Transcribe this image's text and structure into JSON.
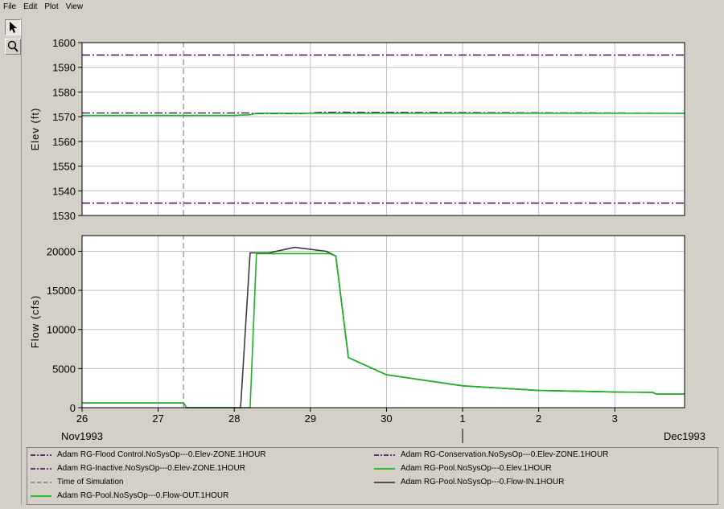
{
  "menu": [
    "File",
    "Edit",
    "Plot",
    "View"
  ],
  "tools": [
    {
      "name": "pointer-tool",
      "icon": "arrow-pointer-icon",
      "active": true
    },
    {
      "name": "zoom-tool",
      "icon": "magnifier-icon",
      "active": false
    }
  ],
  "colors": {
    "purple": "#5a1a6e",
    "green": "#16b51e",
    "black": "#3c3c3c",
    "gray": "#707070",
    "grid": "#c0c0c0",
    "plot_bg": "#ffffff"
  },
  "x_axis": {
    "ticks": [
      {
        "day": 26,
        "label": "26"
      },
      {
        "day": 27,
        "label": "27"
      },
      {
        "day": 28,
        "label": "28"
      },
      {
        "day": 29,
        "label": "29"
      },
      {
        "day": 30,
        "label": "30"
      },
      {
        "day": 31,
        "label": "1"
      },
      {
        "day": 32,
        "label": "2"
      },
      {
        "day": 33,
        "label": "3"
      }
    ],
    "month_left": "Nov1993",
    "month_right": "Dec1993"
  },
  "chart_data": [
    {
      "type": "line",
      "ylabel": "Elev  (ft)",
      "xlim": [
        "26Nov1993",
        "03Dec1993 22:00"
      ],
      "ylim": [
        1530,
        1600
      ],
      "yticks": [
        1530,
        1540,
        1550,
        1560,
        1570,
        1580,
        1590,
        1600
      ],
      "grid": true,
      "series": [
        {
          "name": "Adam RG-Flood Control.NoSysOp---0.Elev-ZONE.1HOUR",
          "style": "dashdot",
          "color": "#5a1a6e",
          "x": [
            "26Nov1993",
            "03Dec1993 22:00"
          ],
          "y": [
            1595,
            1595
          ]
        },
        {
          "name": "Adam RG-Conservation.NoSysOp---0.Elev-ZONE.1HOUR",
          "style": "dashdot",
          "color": "#5a1a6e",
          "x": [
            "26Nov1993",
            "28Nov1993 05:00",
            "28Nov1993 06:00",
            "28Nov1993 21:00",
            "29Nov1993 04:00",
            "03Dec1993 22:00"
          ],
          "y": [
            1571.5,
            1571.5,
            1571.3,
            1571.3,
            1571.8,
            1571.4
          ]
        },
        {
          "name": "Adam RG-Inactive.NoSysOp---0.Elev-ZONE.1HOUR",
          "style": "dashdot",
          "color": "#5a1a6e",
          "x": [
            "26Nov1993",
            "03Dec1993 22:00"
          ],
          "y": [
            1535,
            1535
          ]
        },
        {
          "name": "Adam RG-Pool.NoSysOp---0.Elev.1HOUR",
          "style": "solid",
          "color": "#16b51e",
          "x": [
            "26Nov1993",
            "28Nov1993",
            "28Nov1993 05:00",
            "28Nov1993 07:00",
            "03Dec1993 22:00"
          ],
          "y": [
            1570.5,
            1570.5,
            1570.8,
            1571.4,
            1571.4
          ]
        },
        {
          "name": "Time of Simulation",
          "style": "dashed",
          "color": "#707070",
          "x": [
            "27Nov1993 08:00",
            "27Nov1993 08:00"
          ],
          "y": [
            1530,
            1600
          ]
        }
      ]
    },
    {
      "type": "line",
      "ylabel": "Flow  (cfs)",
      "xlim": [
        "26Nov1993",
        "03Dec1993 22:00"
      ],
      "ylim": [
        0,
        22000
      ],
      "yticks": [
        0,
        5000,
        10000,
        15000,
        20000
      ],
      "grid": true,
      "series": [
        {
          "name": "Adam RG-Pool.NoSysOp---0.Flow-IN.1HOUR",
          "style": "solid",
          "color": "#3c3c3c",
          "x": [
            "26Nov1993",
            "27Nov1993 08:00",
            "27Nov1993 09:00",
            "28Nov1993 02:00",
            "28Nov1993 05:00",
            "28Nov1993 11:00",
            "28Nov1993 19:00",
            "29Nov1993 05:00",
            "29Nov1993 08:00",
            "29Nov1993 12:00",
            "30Nov1993",
            "01Dec1993",
            "02Dec1993",
            "03Dec1993",
            "03Dec1993 12:00",
            "03Dec1993 13:00",
            "03Dec1993 22:00"
          ],
          "y": [
            600,
            600,
            0,
            0,
            19800,
            19800,
            20500,
            20000,
            19400,
            6400,
            4200,
            2800,
            2200,
            2000,
            1950,
            1750,
            1750
          ]
        },
        {
          "name": "Adam RG-Pool.NoSysOp---0.Flow-OUT.1HOUR",
          "style": "solid",
          "color": "#16b51e",
          "x": [
            "26Nov1993",
            "27Nov1993 08:00",
            "27Nov1993 09:00",
            "28Nov1993 05:00",
            "28Nov1993 07:00",
            "28Nov1993 08:00",
            "29Nov1993 06:00",
            "29Nov1993 08:00",
            "29Nov1993 12:00",
            "30Nov1993",
            "01Dec1993",
            "02Dec1993",
            "03Dec1993",
            "03Dec1993 12:00",
            "03Dec1993 13:00",
            "03Dec1993 22:00"
          ],
          "y": [
            600,
            600,
            0,
            0,
            19700,
            19700,
            19700,
            19400,
            6400,
            4200,
            2800,
            2200,
            2000,
            1950,
            1750,
            1750
          ]
        },
        {
          "name": "Time of Simulation",
          "style": "dashed",
          "color": "#707070",
          "x": [
            "27Nov1993 08:00",
            "27Nov1993 08:00"
          ],
          "y": [
            0,
            22000
          ]
        }
      ]
    }
  ],
  "legend": [
    {
      "label": "Adam RG-Flood Control.NoSysOp---0.Elev-ZONE.1HOUR",
      "style": "dashdot",
      "color": "#5a1a6e"
    },
    {
      "label": "Adam RG-Conservation.NoSysOp---0.Elev-ZONE.1HOUR",
      "style": "dashdot",
      "color": "#5a1a6e"
    },
    {
      "label": "Adam RG-Inactive.NoSysOp---0.Elev-ZONE.1HOUR",
      "style": "dashdot",
      "color": "#5a1a6e"
    },
    {
      "label": "Adam RG-Pool.NoSysOp---0.Elev.1HOUR",
      "style": "solid",
      "color": "#16b51e"
    },
    {
      "label": "Time of Simulation",
      "style": "dashed",
      "color": "#707070"
    },
    {
      "label": "Adam RG-Pool.NoSysOp---0.Flow-IN.1HOUR",
      "style": "solid",
      "color": "#3c3c3c"
    },
    {
      "label": "Adam RG-Pool.NoSysOp---0.Flow-OUT.1HOUR",
      "style": "solid",
      "color": "#16b51e"
    }
  ]
}
